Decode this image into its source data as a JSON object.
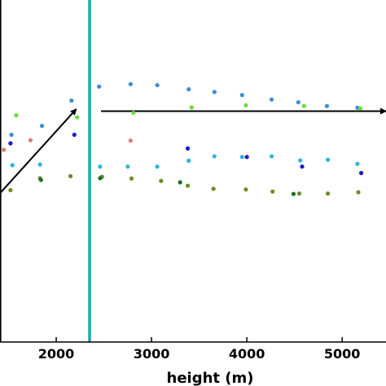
{
  "chart_data": {
    "type": "scatter",
    "title": "",
    "xlabel": "height (m)",
    "ylabel": "",
    "xlim": [
      1410,
      5460
    ],
    "ylim": [
      0,
      1
    ],
    "x_ticks": [
      2000,
      3000,
      4000,
      5000
    ],
    "x_tick_labels": [
      "2000",
      "3000",
      "4000",
      "5000"
    ],
    "grid": false,
    "vline": {
      "x": 2350,
      "color": "#1aa8b0"
    },
    "arrows": [
      {
        "from": [
          1410,
          0.435
        ],
        "to": [
          2210,
          0.681
        ]
      },
      {
        "from": [
          2470,
          0.675
        ],
        "to": [
          5460,
          0.675
        ]
      }
    ],
    "series": [
      {
        "color": "#3a8fd8",
        "points": [
          [
            2160,
            0.706
          ],
          [
            2450,
            0.747
          ],
          [
            2780,
            0.754
          ],
          [
            3060,
            0.751
          ],
          [
            3390,
            0.739
          ],
          [
            3660,
            0.731
          ],
          [
            3950,
            0.722
          ],
          [
            4260,
            0.709
          ],
          [
            4540,
            0.701
          ],
          [
            4840,
            0.69
          ],
          [
            5160,
            0.685
          ],
          [
            1530,
            0.606
          ],
          [
            1850,
            0.632
          ]
        ]
      },
      {
        "color": "#2ab5e0",
        "points": [
          [
            1540,
            0.517
          ],
          [
            1830,
            0.519
          ],
          [
            2460,
            0.513
          ],
          [
            2750,
            0.513
          ],
          [
            3060,
            0.513
          ],
          [
            3390,
            0.53
          ],
          [
            3660,
            0.543
          ],
          [
            3950,
            0.541
          ],
          [
            4260,
            0.543
          ],
          [
            4560,
            0.531
          ],
          [
            4850,
            0.533
          ],
          [
            5160,
            0.521
          ]
        ]
      },
      {
        "color": "#1a1ac8",
        "points": [
          [
            2190,
            0.606
          ],
          [
            3380,
            0.566
          ],
          [
            4000,
            0.541
          ],
          [
            4580,
            0.513
          ],
          [
            5200,
            0.494
          ],
          [
            1520,
            0.581
          ]
        ]
      },
      {
        "color": "#66e030",
        "points": [
          [
            1580,
            0.663
          ],
          [
            2220,
            0.657
          ],
          [
            2810,
            0.67
          ],
          [
            3420,
            0.686
          ],
          [
            3990,
            0.692
          ],
          [
            4600,
            0.69
          ],
          [
            5190,
            0.683
          ]
        ]
      },
      {
        "color": "#e07a7a",
        "points": [
          [
            1450,
            0.562
          ],
          [
            1730,
            0.59
          ],
          [
            2780,
            0.589
          ]
        ]
      },
      {
        "color": "#6b8a20",
        "points": [
          [
            1520,
            0.444
          ],
          [
            1830,
            0.479
          ],
          [
            2150,
            0.485
          ],
          [
            2480,
            0.483
          ],
          [
            2790,
            0.478
          ],
          [
            3100,
            0.471
          ],
          [
            3380,
            0.457
          ],
          [
            3650,
            0.448
          ],
          [
            3990,
            0.446
          ],
          [
            4270,
            0.44
          ],
          [
            4550,
            0.434
          ],
          [
            4850,
            0.434
          ],
          [
            5170,
            0.438
          ]
        ]
      },
      {
        "color": "#1e6e1e",
        "points": [
          [
            1840,
            0.474
          ],
          [
            2460,
            0.479
          ],
          [
            3300,
            0.467
          ],
          [
            4490,
            0.433
          ]
        ]
      }
    ]
  }
}
